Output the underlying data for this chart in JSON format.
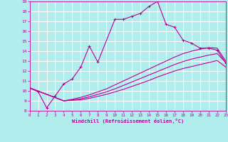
{
  "xlabel": "Windchill (Refroidissement éolien,°C)",
  "xlim": [
    0,
    23
  ],
  "ylim": [
    8,
    19
  ],
  "xticks": [
    0,
    1,
    2,
    3,
    4,
    5,
    6,
    7,
    8,
    9,
    10,
    11,
    12,
    13,
    14,
    15,
    16,
    17,
    18,
    19,
    20,
    21,
    22,
    23
  ],
  "yticks": [
    8,
    9,
    10,
    11,
    12,
    13,
    14,
    15,
    16,
    17,
    18,
    19
  ],
  "bg_color": "#b2eded",
  "grid_color": "#ffffff",
  "line_color": "#bb0099",
  "line1_x": [
    0,
    1,
    2,
    3,
    4,
    5,
    6,
    7,
    8,
    10,
    11,
    12,
    13,
    14,
    15,
    16,
    17,
    18,
    19,
    20,
    21,
    22,
    23
  ],
  "line1_y": [
    10.3,
    9.9,
    8.3,
    9.5,
    10.7,
    11.2,
    12.4,
    14.5,
    12.9,
    17.2,
    17.2,
    17.5,
    17.8,
    18.5,
    19.0,
    16.7,
    16.4,
    15.1,
    14.8,
    14.3,
    14.3,
    14.1,
    12.8
  ],
  "line2_x": [
    0,
    4,
    5,
    6,
    7,
    8,
    9,
    10,
    11,
    12,
    13,
    14,
    15,
    16,
    17,
    18,
    19,
    20,
    21,
    22,
    23
  ],
  "line2_y": [
    10.3,
    9.0,
    9.05,
    9.1,
    9.25,
    9.45,
    9.65,
    9.9,
    10.15,
    10.45,
    10.75,
    11.05,
    11.4,
    11.7,
    12.0,
    12.25,
    12.45,
    12.65,
    12.85,
    13.05,
    12.4
  ],
  "line3_x": [
    0,
    4,
    5,
    6,
    7,
    8,
    9,
    10,
    11,
    12,
    13,
    14,
    15,
    16,
    17,
    18,
    19,
    20,
    21,
    22,
    23
  ],
  "line3_y": [
    10.3,
    9.0,
    9.1,
    9.2,
    9.4,
    9.65,
    9.9,
    10.2,
    10.55,
    10.9,
    11.25,
    11.6,
    11.95,
    12.3,
    12.65,
    12.95,
    13.2,
    13.4,
    13.6,
    13.75,
    12.85
  ],
  "line4_x": [
    0,
    4,
    5,
    6,
    7,
    8,
    9,
    10,
    11,
    12,
    13,
    14,
    15,
    16,
    17,
    18,
    19,
    20,
    21,
    22,
    23
  ],
  "line4_y": [
    10.3,
    9.0,
    9.15,
    9.35,
    9.6,
    9.9,
    10.2,
    10.6,
    11.0,
    11.4,
    11.8,
    12.2,
    12.6,
    13.0,
    13.4,
    13.75,
    14.0,
    14.2,
    14.35,
    14.3,
    13.0
  ]
}
